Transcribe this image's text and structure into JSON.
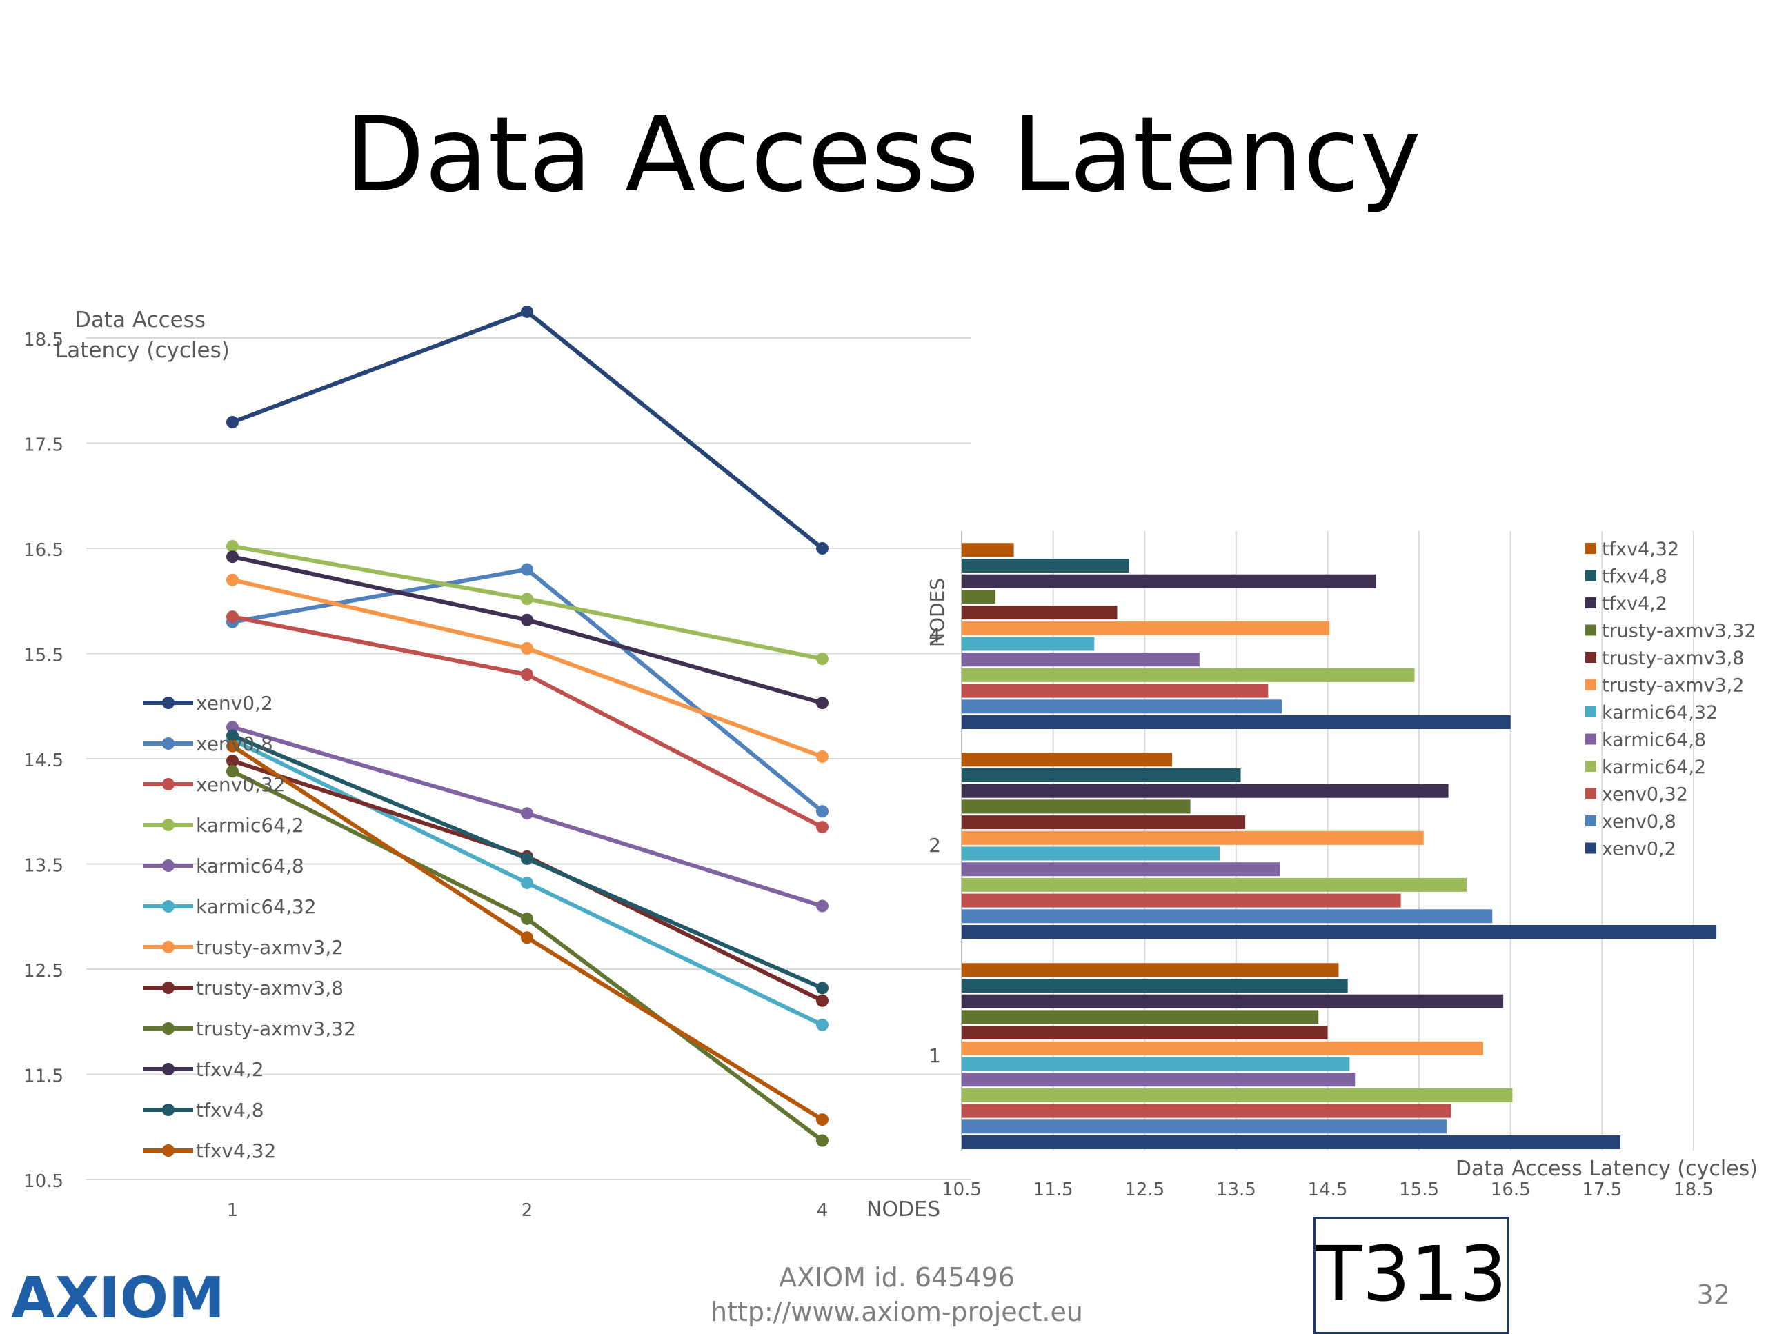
{
  "slide": {
    "title": "Data Access Latency",
    "footer_id": "AXIOM id. 645496",
    "footer_url": "http://www.axiom-project.eu",
    "code": "T313",
    "page_number": "32",
    "logo_text": "AXIOM"
  },
  "chart_data": [
    {
      "type": "line",
      "ylabel_line1": "Data Access",
      "ylabel_line2": "Latency (cycles)",
      "xlabel": "NODES",
      "categories": [
        "1",
        "2",
        "4"
      ],
      "ylim": [
        10.5,
        18.5
      ],
      "yticks": [
        "18.5",
        "17.5",
        "16.5",
        "15.5",
        "14.5",
        "13.5",
        "12.5",
        "11.5",
        "10.5"
      ],
      "grid": true,
      "legend_position": "left",
      "series": [
        {
          "name": "xenv0,2",
          "color": "#264478",
          "values": [
            17.7,
            18.75,
            16.5
          ]
        },
        {
          "name": "xenv0,8",
          "color": "#4f81bd",
          "values": [
            15.8,
            16.3,
            14.0
          ]
        },
        {
          "name": "xenv0,32",
          "color": "#c0504d",
          "values": [
            15.85,
            15.3,
            13.85
          ]
        },
        {
          "name": "karmic64,2",
          "color": "#9bbb59",
          "values": [
            16.52,
            16.02,
            15.45
          ]
        },
        {
          "name": "karmic64,8",
          "color": "#8064a2",
          "values": [
            14.8,
            13.98,
            13.1
          ]
        },
        {
          "name": "karmic64,32",
          "color": "#4bacc6",
          "values": [
            14.68,
            13.32,
            11.97
          ]
        },
        {
          "name": "trusty-axmv3,2",
          "color": "#f79646",
          "values": [
            16.2,
            15.55,
            14.52
          ]
        },
        {
          "name": "trusty-axmv3,8",
          "color": "#772c2a",
          "values": [
            14.48,
            13.57,
            12.2
          ]
        },
        {
          "name": "trusty-axmv3,32",
          "color": "#5f7530",
          "values": [
            14.38,
            12.98,
            10.87
          ]
        },
        {
          "name": "tfxv4,2",
          "color": "#403152",
          "values": [
            16.42,
            15.82,
            15.03
          ]
        },
        {
          "name": "tfxv4,8",
          "color": "#215968",
          "values": [
            14.72,
            13.55,
            12.32
          ]
        },
        {
          "name": "tfxv4,32",
          "color": "#b65708",
          "values": [
            14.62,
            12.8,
            11.07
          ]
        }
      ]
    },
    {
      "type": "bar",
      "orientation": "horizontal",
      "ylabel": "NODES",
      "xlabel": "Data Access Latency (cycles)",
      "categories": [
        "1",
        "2",
        "4"
      ],
      "xlim": [
        10.5,
        18.5
      ],
      "xticks": [
        "10.5",
        "11.5",
        "12.5",
        "13.5",
        "14.5",
        "15.5",
        "16.5",
        "17.5",
        "18.5"
      ],
      "grid": true,
      "legend_position": "right",
      "series": [
        {
          "name": "xenv0,2",
          "color": "#264478",
          "values": [
            17.7,
            18.75,
            16.5
          ]
        },
        {
          "name": "xenv0,8",
          "color": "#4f81bd",
          "values": [
            15.8,
            16.3,
            14.0
          ]
        },
        {
          "name": "xenv0,32",
          "color": "#c0504d",
          "values": [
            15.85,
            15.3,
            13.85
          ]
        },
        {
          "name": "karmic64,2",
          "color": "#9bbb59",
          "values": [
            16.52,
            16.02,
            15.45
          ]
        },
        {
          "name": "karmic64,8",
          "color": "#8064a2",
          "values": [
            14.8,
            13.98,
            13.1
          ]
        },
        {
          "name": "karmic64,32",
          "color": "#4bacc6",
          "values": [
            14.74,
            13.32,
            11.95
          ]
        },
        {
          "name": "trusty-axmv3,2",
          "color": "#f79646",
          "values": [
            16.2,
            15.55,
            14.52
          ]
        },
        {
          "name": "trusty-axmv3,8",
          "color": "#772c2a",
          "values": [
            14.5,
            13.6,
            12.2
          ]
        },
        {
          "name": "trusty-axmv3,32",
          "color": "#5f7530",
          "values": [
            14.4,
            13.0,
            10.87
          ]
        },
        {
          "name": "tfxv4,2",
          "color": "#403152",
          "values": [
            16.42,
            15.82,
            15.03
          ]
        },
        {
          "name": "tfxv4,8",
          "color": "#215968",
          "values": [
            14.72,
            13.55,
            12.33
          ]
        },
        {
          "name": "tfxv4,32",
          "color": "#b65708",
          "values": [
            14.62,
            12.8,
            11.07
          ]
        }
      ]
    }
  ]
}
